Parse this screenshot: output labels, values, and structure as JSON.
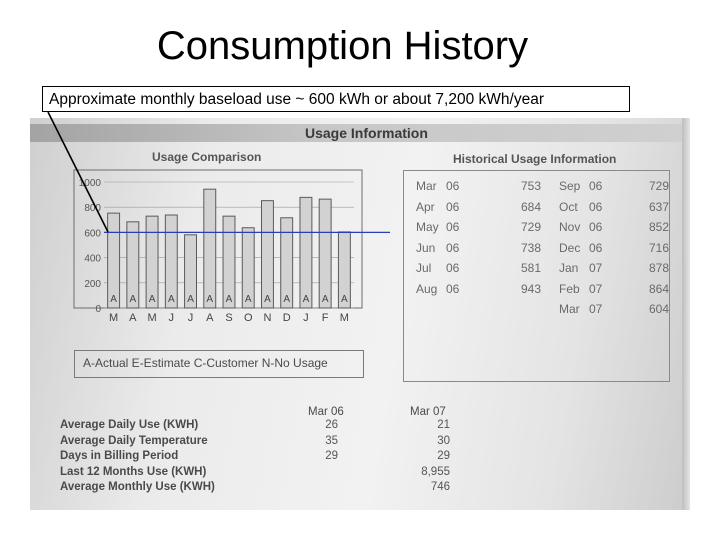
{
  "slide": {
    "title": "Consumption History",
    "callout": "Approximate monthly baseload use ~ 600 kWh or about 7,200 kWh/year"
  },
  "bill": {
    "header": "Usage Information",
    "usage_comparison_title": "Usage Comparison",
    "historical_title": "Historical Usage Information",
    "legend": "A-Actual   E-Estimate   C-Customer   N-No Usage",
    "historical": [
      {
        "month": "Mar",
        "year": "06",
        "kwh": "753"
      },
      {
        "month": "Apr",
        "year": "06",
        "kwh": "684"
      },
      {
        "month": "May",
        "year": "06",
        "kwh": "729"
      },
      {
        "month": "Jun",
        "year": "06",
        "kwh": "738"
      },
      {
        "month": "Jul",
        "year": "06",
        "kwh": "581"
      },
      {
        "month": "Aug",
        "year": "06",
        "kwh": "943"
      },
      {
        "month": "Sep",
        "year": "06",
        "kwh": "729"
      },
      {
        "month": "Oct",
        "year": "06",
        "kwh": "637"
      },
      {
        "month": "Nov",
        "year": "06",
        "kwh": "852"
      },
      {
        "month": "Dec",
        "year": "06",
        "kwh": "716"
      },
      {
        "month": "Jan",
        "year": "07",
        "kwh": "878"
      },
      {
        "month": "Feb",
        "year": "07",
        "kwh": "864"
      },
      {
        "month": "Mar",
        "year": "07",
        "kwh": "604"
      }
    ],
    "stats": {
      "col1_header": "Mar 06",
      "col2_header": "Mar 07",
      "rows": [
        {
          "label": "Average Daily Use (KWH)",
          "v1": "26",
          "v2": "21"
        },
        {
          "label": "Average Daily Temperature",
          "v1": "35",
          "v2": "30"
        },
        {
          "label": "Days in Billing Period",
          "v1": "29",
          "v2": "29"
        },
        {
          "label": "Last 12 Months Use (KWH)",
          "v1": "",
          "v2": "8,955"
        },
        {
          "label": "Average Monthly Use (KWH)",
          "v1": "",
          "v2": "746"
        }
      ]
    }
  },
  "chart_data": {
    "type": "bar",
    "title": "Usage Comparison",
    "categories": [
      "M",
      "A",
      "M",
      "J",
      "J",
      "A",
      "S",
      "O",
      "N",
      "D",
      "J",
      "F",
      "M"
    ],
    "values": [
      753,
      684,
      729,
      738,
      581,
      943,
      729,
      637,
      852,
      716,
      878,
      864,
      604
    ],
    "bar_labels": [
      "A",
      "A",
      "A",
      "A",
      "A",
      "A",
      "A",
      "A",
      "A",
      "A",
      "A",
      "A",
      "A"
    ],
    "yticks": [
      "0",
      "200",
      "400",
      "600",
      "800",
      "1000"
    ],
    "ylim": [
      0,
      1000
    ],
    "baseload_line": 600,
    "grid": true
  },
  "colors": {
    "baseload_line": "#2a3fb0",
    "bar_fill": "#d2d2d2",
    "bar_stroke": "#5a5a5a"
  }
}
